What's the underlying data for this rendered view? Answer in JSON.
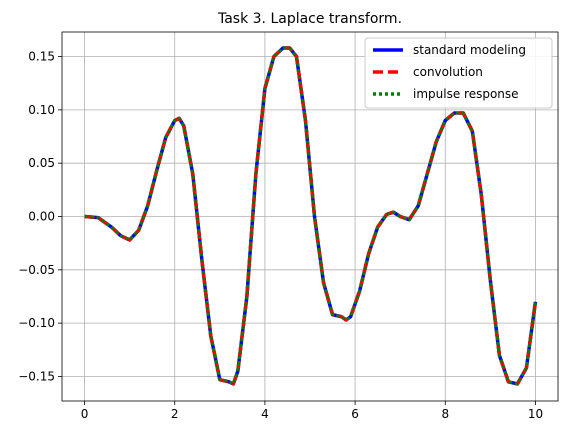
{
  "chart_data": {
    "type": "line",
    "title": "Task 3. Laplace transform.",
    "xlabel": "",
    "ylabel": "",
    "xlim": [
      -0.5,
      10.5
    ],
    "ylim": [
      -0.173,
      0.173
    ],
    "xticks": [
      0,
      2,
      4,
      6,
      8,
      10
    ],
    "yticks": [
      -0.15,
      -0.1,
      -0.05,
      0.0,
      0.05,
      0.1,
      0.15
    ],
    "ytick_labels": [
      "−0.15",
      "−0.10",
      "−0.05",
      "0.00",
      "0.05",
      "0.10",
      "0.15"
    ],
    "grid": true,
    "legend_position": "top-right",
    "x": [
      0.0,
      0.3,
      0.6,
      0.8,
      1.0,
      1.2,
      1.4,
      1.6,
      1.8,
      2.0,
      2.1,
      2.2,
      2.4,
      2.6,
      2.8,
      3.0,
      3.2,
      3.3,
      3.4,
      3.6,
      3.8,
      4.0,
      4.2,
      4.4,
      4.55,
      4.7,
      4.9,
      5.1,
      5.3,
      5.5,
      5.7,
      5.8,
      5.9,
      6.1,
      6.3,
      6.5,
      6.7,
      6.85,
      7.0,
      7.2,
      7.4,
      7.6,
      7.8,
      8.0,
      8.2,
      8.4,
      8.6,
      8.8,
      9.0,
      9.2,
      9.4,
      9.6,
      9.8,
      10.0
    ],
    "series": [
      {
        "name": "standard modeling",
        "color": "#0000ff",
        "style": "solid",
        "values": [
          0.0,
          -0.001,
          -0.01,
          -0.018,
          -0.022,
          -0.013,
          0.01,
          0.043,
          0.074,
          0.09,
          0.092,
          0.085,
          0.04,
          -0.04,
          -0.112,
          -0.153,
          -0.155,
          -0.157,
          -0.145,
          -0.075,
          0.04,
          0.12,
          0.15,
          0.158,
          0.158,
          0.15,
          0.09,
          0.0,
          -0.062,
          -0.092,
          -0.094,
          -0.097,
          -0.094,
          -0.07,
          -0.035,
          -0.01,
          0.002,
          0.004,
          0.0,
          -0.003,
          0.01,
          0.04,
          0.07,
          0.09,
          0.097,
          0.097,
          0.08,
          0.02,
          -0.06,
          -0.13,
          -0.155,
          -0.157,
          -0.142,
          -0.08
        ]
      },
      {
        "name": "convolution",
        "color": "#ff0000",
        "style": "dashed",
        "values": [
          0.0,
          -0.001,
          -0.01,
          -0.018,
          -0.022,
          -0.013,
          0.01,
          0.043,
          0.074,
          0.09,
          0.092,
          0.085,
          0.04,
          -0.04,
          -0.112,
          -0.153,
          -0.155,
          -0.157,
          -0.145,
          -0.075,
          0.04,
          0.12,
          0.15,
          0.158,
          0.158,
          0.15,
          0.09,
          0.0,
          -0.062,
          -0.092,
          -0.094,
          -0.097,
          -0.094,
          -0.07,
          -0.035,
          -0.01,
          0.002,
          0.004,
          0.0,
          -0.003,
          0.01,
          0.04,
          0.07,
          0.09,
          0.097,
          0.097,
          0.08,
          0.02,
          -0.06,
          -0.13,
          -0.155,
          -0.157,
          -0.142,
          -0.08
        ]
      },
      {
        "name": "impulse response",
        "color": "#008000",
        "style": "dotted",
        "values": [
          0.0,
          -0.001,
          -0.01,
          -0.018,
          -0.022,
          -0.013,
          0.01,
          0.043,
          0.074,
          0.09,
          0.092,
          0.085,
          0.04,
          -0.04,
          -0.112,
          -0.153,
          -0.155,
          -0.157,
          -0.145,
          -0.075,
          0.04,
          0.12,
          0.15,
          0.158,
          0.158,
          0.15,
          0.09,
          0.0,
          -0.062,
          -0.092,
          -0.094,
          -0.097,
          -0.094,
          -0.07,
          -0.035,
          -0.01,
          0.002,
          0.004,
          0.0,
          -0.003,
          0.01,
          0.04,
          0.07,
          0.09,
          0.097,
          0.097,
          0.08,
          0.02,
          -0.06,
          -0.13,
          -0.155,
          -0.157,
          -0.142,
          -0.08
        ]
      }
    ]
  }
}
